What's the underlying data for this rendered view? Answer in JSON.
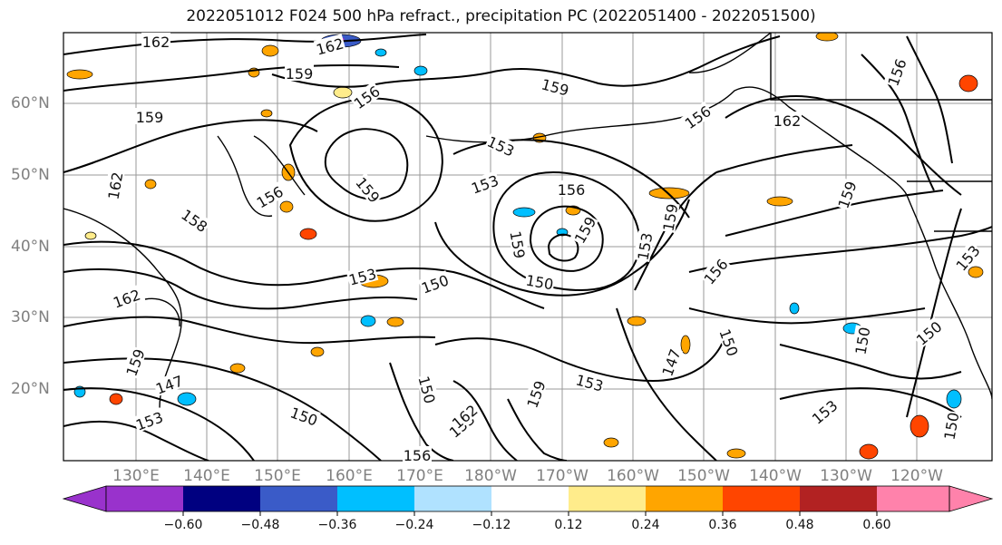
{
  "title": "2022051012 F024 500 hPa refract., precipitation PC (2022051400 - 2022051500)",
  "lat_labels": [
    "60°N",
    "50°N",
    "40°N",
    "30°N",
    "20°N"
  ],
  "lon_labels": [
    "130°E",
    "140°E",
    "150°E",
    "160°E",
    "170°E",
    "180°W",
    "170°W",
    "160°W",
    "150°W",
    "140°W",
    "130°W",
    "120°W"
  ],
  "colorbar": {
    "ticks": [
      "−0.60",
      "−0.48",
      "−0.36",
      "−0.24",
      "−0.12",
      "0.12",
      "0.24",
      "0.36",
      "0.48",
      "0.60"
    ],
    "colors": [
      "#9932cc",
      "#000080",
      "#3a5bc8",
      "#00bfff",
      "#b0e2ff",
      "#ffffff",
      "#ffec8b",
      "#ffa500",
      "#ff4500",
      "#b22222",
      "#ff82ab"
    ]
  },
  "contour_labels": [
    "162",
    "162",
    "159",
    "159",
    "156",
    "159",
    "162",
    "156",
    "153",
    "153",
    "156",
    "159",
    "159",
    "156",
    "162",
    "158",
    "162",
    "150",
    "153",
    "159",
    "150",
    "153",
    "159",
    "156",
    "150",
    "159",
    "147",
    "153",
    "150",
    "150",
    "153",
    "153",
    "150",
    "147",
    "159",
    "153",
    "150",
    "162",
    "156",
    "159",
    "153",
    "150",
    "156"
  ]
}
